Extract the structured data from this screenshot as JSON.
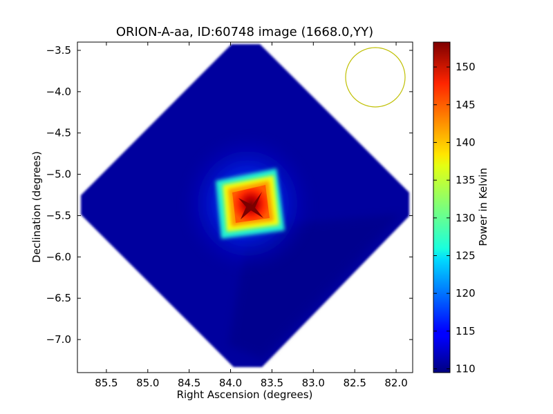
{
  "chart_data": {
    "type": "heatmap",
    "title": "ORION-A-aa, ID:60748 image (1668.0,YY)",
    "xlabel": "Right Ascension (degrees)",
    "ylabel": "Declination (degrees)",
    "xlim": [
      85.85,
      81.8
    ],
    "ylim": [
      -7.4,
      -3.4
    ],
    "x_ticks": [
      85.5,
      85.0,
      84.5,
      84.0,
      83.5,
      83.0,
      82.5,
      82.0
    ],
    "x_tick_labels": [
      "85.5",
      "85.0",
      "84.5",
      "84.0",
      "83.5",
      "83.0",
      "82.5",
      "82.0"
    ],
    "y_ticks": [
      -3.5,
      -4.0,
      -4.5,
      -5.0,
      -5.5,
      -6.0,
      -6.5,
      -7.0
    ],
    "y_tick_labels": [
      "−3.5",
      "−4.0",
      "−4.5",
      "−5.0",
      "−5.5",
      "−6.0",
      "−6.5",
      "−7.0"
    ],
    "colormap": "jet",
    "colorbar": {
      "label": "Power in Kelvin",
      "min": 109.5,
      "max": 153.3,
      "ticks": [
        110,
        115,
        120,
        125,
        130,
        135,
        140,
        145,
        150
      ],
      "tick_labels": [
        "110",
        "115",
        "120",
        "125",
        "130",
        "135",
        "140",
        "145",
        "150"
      ]
    },
    "map_footprint": {
      "shape": "diamond",
      "center_ra": 83.8,
      "center_dec": -5.4,
      "half_width_deg": 2.3,
      "background_power": 110
    },
    "peak": {
      "ra": 83.8,
      "dec": -5.38,
      "power": 153
    },
    "beam_circle": {
      "ra": 82.27,
      "dec": -3.82,
      "radius_deg": 0.36,
      "color": "#bfbf00"
    },
    "grid": false
  }
}
